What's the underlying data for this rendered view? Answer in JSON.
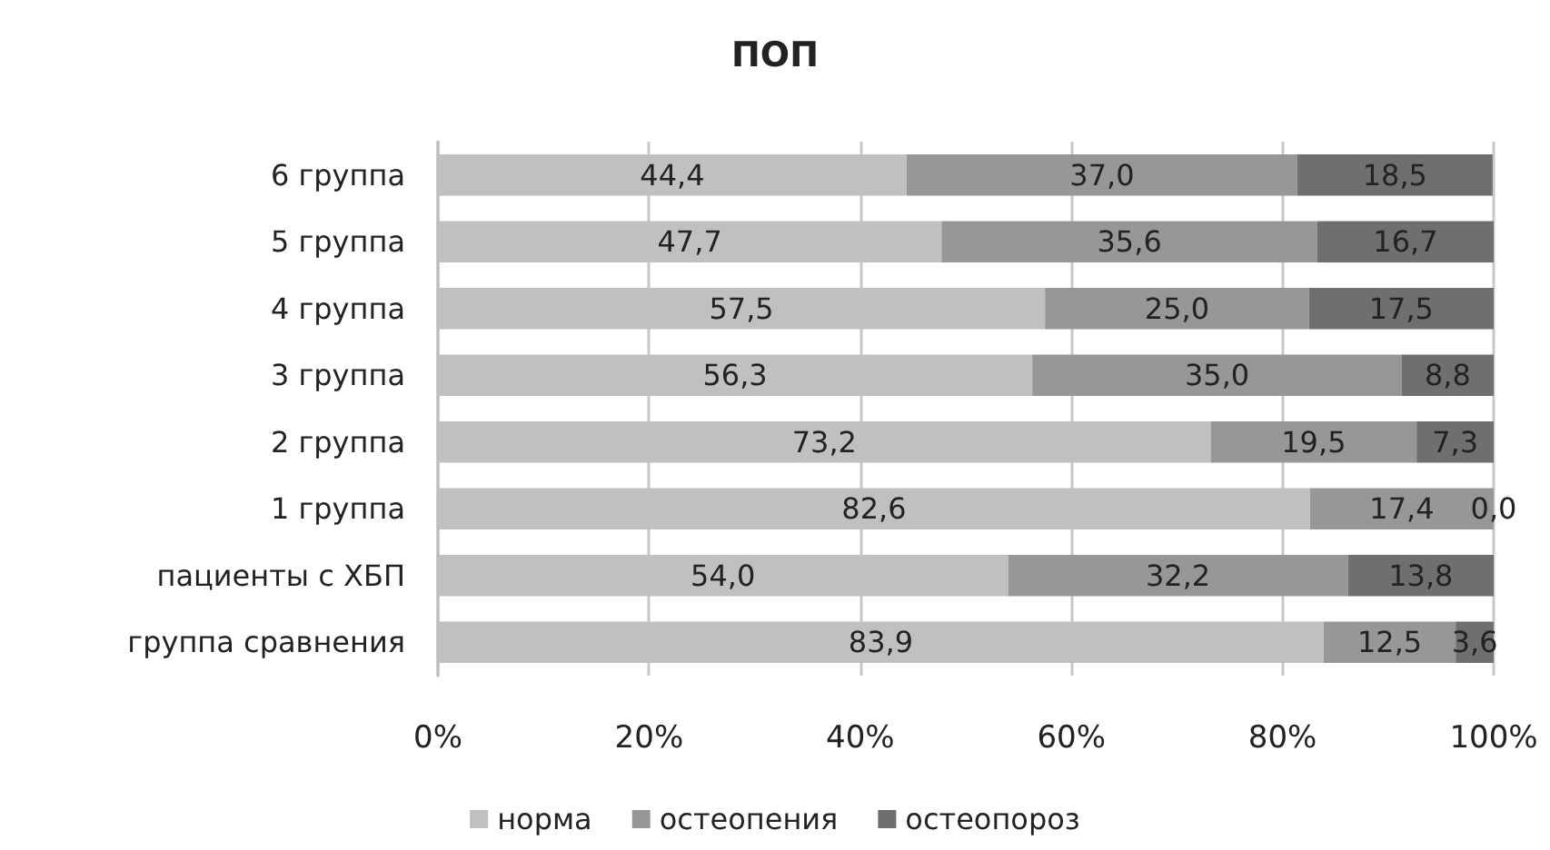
{
  "chart_data": {
    "type": "bar",
    "title": "ПОП",
    "orientation": "horizontal",
    "stacked": true,
    "categories": [
      "6 группа",
      "5 группа",
      "4 группа",
      "3 группа",
      "2 группа",
      "1 группа",
      "пациенты с ХБП",
      "группа сравнения"
    ],
    "series": [
      {
        "name": "норма",
        "color": "#c0c0c0",
        "values": [
          44.4,
          47.7,
          57.5,
          56.3,
          73.2,
          82.6,
          54.0,
          83.9
        ],
        "value_labels": [
          "44,4",
          "47,7",
          "57,5",
          "56,3",
          "73,2",
          "82,6",
          "54,0",
          "83,9"
        ]
      },
      {
        "name": "остеопения",
        "color": "#979797",
        "values": [
          37.0,
          35.6,
          25.0,
          35.0,
          19.5,
          17.4,
          32.2,
          12.5
        ],
        "value_labels": [
          "37,0",
          "35,6",
          "25,0",
          "35,0",
          "19,5",
          "17,4",
          "32,2",
          "12,5"
        ]
      },
      {
        "name": "остеопороз",
        "color": "#6f6f6f",
        "values": [
          18.5,
          16.7,
          17.5,
          8.8,
          7.3,
          0.0,
          13.8,
          3.6
        ],
        "value_labels": [
          "18,5",
          "16,7",
          "17,5",
          "8,8",
          "7,3",
          "0,0",
          "13,8",
          "3,6"
        ]
      }
    ],
    "xlim": [
      0,
      100
    ],
    "xticks": [
      {
        "value": 0,
        "label": "0%"
      },
      {
        "value": 20,
        "label": "20%"
      },
      {
        "value": 40,
        "label": "40%"
      },
      {
        "value": 60,
        "label": "60%"
      },
      {
        "value": 80,
        "label": "80%"
      },
      {
        "value": 100,
        "label": "100%"
      }
    ],
    "grid": "x",
    "legend": "bottom"
  }
}
